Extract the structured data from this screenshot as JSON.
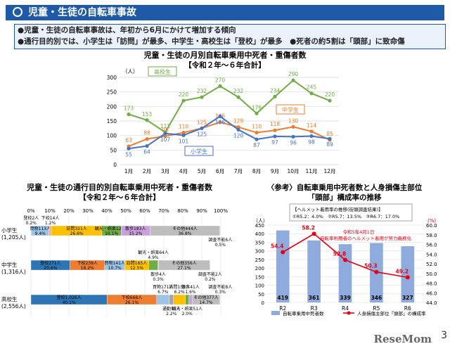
{
  "header": {
    "title": "児童・生徒の自転車事故"
  },
  "summary": {
    "line1": "●児童・生徒の自転車事故は、年初から6月にかけて増加する傾向",
    "line2": "●通行目的別では、小学生は「訪問」が最多、中学生・高校生は「登校」が最多　●死者の約5割は「頭部」に致命傷"
  },
  "footer": {
    "page_number": "3",
    "logo": "ReseMom"
  },
  "chart_data": [
    {
      "type": "line",
      "title": "児童・生徒の月別自転車乗用中死者・重傷者数",
      "subtitle": "【令和２年～６年合計】",
      "ylabel": "（人）",
      "ylim": [
        0,
        300
      ],
      "yticks": [
        0,
        50,
        100,
        150,
        200,
        250,
        300
      ],
      "categories": [
        "1月",
        "2月",
        "3月",
        "4月",
        "5月",
        "6月",
        "7月",
        "8月",
        "9月",
        "10月",
        "11月",
        "12月"
      ],
      "series": [
        {
          "name": "高校生",
          "color": "#70ad47",
          "values": [
            173,
            153,
            111,
            220,
            232,
            270,
            232,
            176,
            234,
            290,
            245,
            220
          ]
        },
        {
          "name": "中学生",
          "color": "#ed7d31",
          "values": [
            63,
            88,
            98,
            110,
            125,
            146,
            129,
            110,
            118,
            130,
            114,
            85
          ]
        },
        {
          "name": "小学生",
          "color": "#4472c4",
          "values": [
            55,
            64,
            107,
            101,
            125,
            166,
            120,
            87,
            97,
            96,
            98,
            89
          ]
        }
      ]
    },
    {
      "type": "bar",
      "orientation": "horizontal-stacked-percent",
      "title": "児童・生徒の通行目的別自転車乗用中死者・重傷者数",
      "subtitle": "【令和２年～６年合計】",
      "xticks": [
        "0%",
        "10%",
        "20%",
        "30%",
        "40%",
        "50%",
        "60%",
        "70%",
        "80%",
        "90%",
        "100%"
      ],
      "groups": [
        {
          "label": "小学生",
          "total": "(1,205人)",
          "segments": [
            {
              "name": "登校",
              "value": 2,
              "percent": 0.2,
              "color": "#2e75b6",
              "label": "登校2人",
              "pct_label": "0.2%"
            },
            {
              "name": "買物",
              "value": 113,
              "percent": 9.4,
              "color": "#9dc3e6",
              "label": "買物113人",
              "pct_label": "9.4%"
            },
            {
              "name": "下校",
              "value": 14,
              "percent": 1.2,
              "color": "#f4b183",
              "label": "下校14人",
              "pct_label": "1.2%"
            },
            {
              "name": "訪問",
              "value": 321,
              "percent": 26.6,
              "color": "#ffc000",
              "label": "訪問321人",
              "pct_label": "26.6%"
            },
            {
              "name": "観光・娯楽",
              "value": 122,
              "percent": 10.1,
              "color": "#70ad47",
              "label": "観光・娯楽122人",
              "pct_label": "10.1%"
            },
            {
              "name": "散歩",
              "value": 183,
              "percent": 15.2,
              "color": "#c9a0dc",
              "label": "散歩183人",
              "pct_label": "15.2%"
            },
            {
              "name": "その他",
              "value": 444,
              "percent": 36.8,
              "color": "#bdbdbd",
              "label": "その他444人",
              "pct_label": "36.8%"
            },
            {
              "name": "調査不能",
              "value": 6,
              "percent": 0.5,
              "color": "#e2e2e2",
              "label": "調査不能6人",
              "pct_label": "0.5%"
            }
          ]
        },
        {
          "label": "中学生",
          "total": "(1,316人)",
          "segments": [
            {
              "name": "登校",
              "value": 271,
              "percent": 20.6,
              "color": "#2e75b6",
              "label": "登校271人",
              "pct_label": "20.6%"
            },
            {
              "name": "下校",
              "value": 239,
              "percent": 18.2,
              "color": "#ed7d31",
              "label": "下校239人",
              "pct_label": "18.2%"
            },
            {
              "name": "買物",
              "value": 141,
              "percent": 10.7,
              "color": "#9dc3e6",
              "label": "買物141人",
              "pct_label": "10.7%"
            },
            {
              "name": "訪問",
              "value": 165,
              "percent": 12.5,
              "color": "#ffc000",
              "label": "訪問165人",
              "pct_label": "12.5%"
            },
            {
              "name": "観光・娯楽",
              "value": 64,
              "percent": 4.9,
              "color": "#70ad47",
              "label": "観光・娯楽64人",
              "pct_label": "4.9%"
            },
            {
              "name": "散歩",
              "value": 4,
              "percent": 0.3,
              "color": "#c9a0dc",
              "label": "散歩4人",
              "pct_label": "0.3%"
            },
            {
              "name": "その他",
              "value": 356,
              "percent": 27.1,
              "color": "#bdbdbd",
              "label": "その他356人",
              "pct_label": "27.1%"
            },
            {
              "name": "調査不能",
              "value": 2,
              "percent": 0.2,
              "color": "#e2e2e2",
              "label": "調査不能2人",
              "pct_label": "0.2%"
            }
          ]
        },
        {
          "label": "高校生",
          "total": "(2,556人)",
          "segments": [
            {
              "name": "登校",
              "value": 1026,
              "percent": 40.1,
              "color": "#2e75b6",
              "label": "登校1,026人",
              "pct_label": "40.1%"
            },
            {
              "name": "下校",
              "value": 668,
              "percent": 26.1,
              "color": "#ed7d31",
              "label": "下校668人",
              "pct_label": "26.1%"
            },
            {
              "name": "買物",
              "value": 171,
              "percent": 6.7,
              "color": "#9dc3e6",
              "label": "買物171人",
              "pct_label": "6.7%"
            },
            {
              "name": "通勤",
              "value": 55,
              "percent": 2.2,
              "color": "#a5a5a5",
              "label": "通勤55人",
              "pct_label": "2.2%"
            },
            {
              "name": "訪問",
              "value": 159,
              "percent": 6.2,
              "color": "#ffc000",
              "label": "訪問159人",
              "pct_label": "6.2%"
            },
            {
              "name": "観光・娯楽",
              "value": 51,
              "percent": 2.0,
              "color": "#70ad47",
              "label": "観光・娯楽51人",
              "pct_label": "2.0%"
            },
            {
              "name": "散歩",
              "value": 41,
              "percent": 1.6,
              "color": "#c9a0dc",
              "label": "散歩41人",
              "pct_label": "1.6%"
            },
            {
              "name": "その他",
              "value": 377,
              "percent": 14.7,
              "color": "#bdbdbd",
              "label": "その他377人",
              "pct_label": "14.7%"
            },
            {
              "name": "調査不能",
              "value": 8,
              "percent": 0.3,
              "color": "#e2e2e2",
              "label": "調査不能8人",
              "pct_label": "0.3%"
            }
          ]
        }
      ]
    },
    {
      "type": "bar+line",
      "title": "〈参考〉自転車乗用中死者数と人身損傷主部位「頭部」構成率の推移",
      "title_line1": "〈参考〉自転車乗用中死者数と人身損傷主部位",
      "title_line2": "「頭部」構成率の推移",
      "helmet_box_title": "【ヘルメット着用率の推移(街頭調査結果)】",
      "helmet_box_values": "①R5.2：4.0%　②R5.7：13.5%　③R6.7：17.0%",
      "annotation_line1": "令和5年4月1日",
      "annotation_line2": "自転車利用者のヘルメット着用が努力義務化",
      "categories": [
        "R2",
        "R3",
        "R4",
        "R5",
        "R6"
      ],
      "y_left_label": "（人）",
      "y_left_ticks": [
        0,
        50,
        100,
        150,
        200,
        250,
        300,
        350,
        400,
        450
      ],
      "ylim_left": [
        0,
        450
      ],
      "y_right_label": "(%)",
      "y_right_ticks": [
        "44.0",
        "46.0",
        "48.0",
        "50.0",
        "52.0",
        "54.0",
        "56.0",
        "58.0",
        "60.0"
      ],
      "ylim_right": [
        44,
        60
      ],
      "bars": {
        "name": "自転車乗用中死者数",
        "color": "#8faadc",
        "values": [
          419,
          361,
          339,
          346,
          327
        ]
      },
      "line": {
        "name": "人身損傷主部位「頭部」の構成率",
        "color": "#e60012",
        "values": [
          54.4,
          58.2,
          52.8,
          50.3,
          49.2
        ]
      }
    }
  ]
}
